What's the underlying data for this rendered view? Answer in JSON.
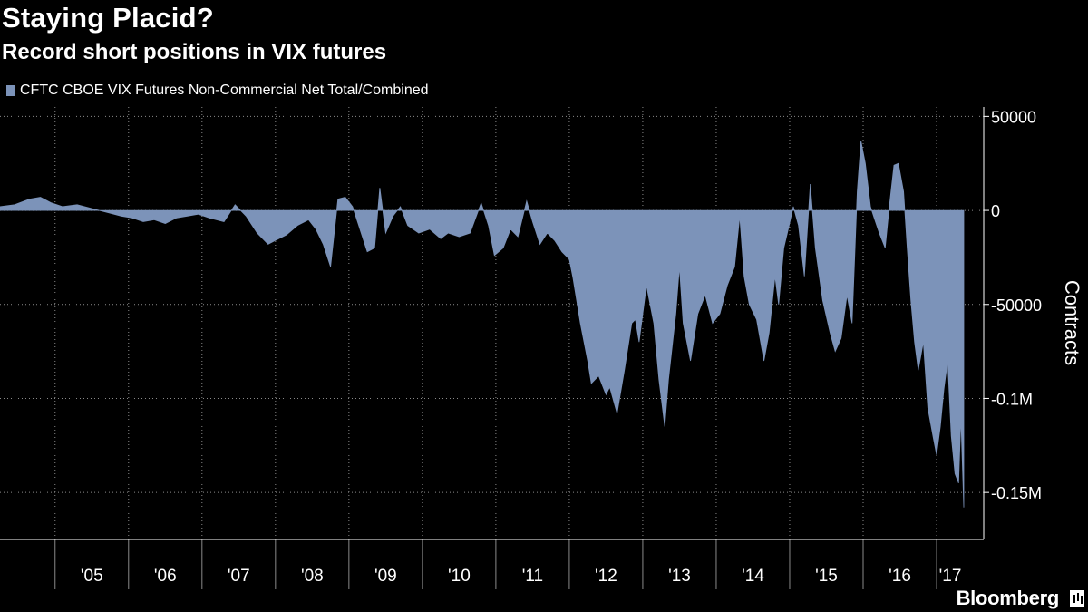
{
  "chart_data": {
    "type": "area",
    "title": "Staying Placid?",
    "subtitle": "Record short positions in VIX futures",
    "legend": "CFTC CBOE VIX Futures Non-Commercial Net Total/Combined",
    "ylabel": "Contracts",
    "ylim": [
      -175000,
      55000
    ],
    "xlim": [
      2004.25,
      2017.37
    ],
    "yticks": [
      {
        "value": 50000,
        "label": "50000"
      },
      {
        "value": 0,
        "label": "0"
      },
      {
        "value": -50000,
        "label": "-50000"
      },
      {
        "value": -100000,
        "label": "-0.1M"
      },
      {
        "value": -150000,
        "label": "-0.15M"
      }
    ],
    "year_labels": [
      "'05",
      "'06",
      "'07",
      "'08",
      "'09",
      "'10",
      "'11",
      "'12",
      "'13",
      "'14",
      "'15",
      "'16",
      "'17"
    ],
    "year_starts": [
      2005,
      2006,
      2007,
      2008,
      2009,
      2010,
      2011,
      2012,
      2013,
      2014,
      2015,
      2016,
      2017
    ],
    "series": [
      {
        "name": "CFTC CBOE VIX Futures Non-Commercial Net Total/Combined",
        "color": "#7c93b9",
        "points": [
          [
            2004.25,
            2000
          ],
          [
            2004.45,
            3000
          ],
          [
            2004.65,
            6000
          ],
          [
            2004.8,
            7000
          ],
          [
            2004.95,
            4000
          ],
          [
            2005.1,
            2000
          ],
          [
            2005.3,
            3000
          ],
          [
            2005.5,
            1000
          ],
          [
            2005.7,
            -1000
          ],
          [
            2005.9,
            -3000
          ],
          [
            2006.05,
            -4000
          ],
          [
            2006.2,
            -6000
          ],
          [
            2006.35,
            -5000
          ],
          [
            2006.5,
            -7000
          ],
          [
            2006.65,
            -4000
          ],
          [
            2006.8,
            -3000
          ],
          [
            2006.95,
            -2000
          ],
          [
            2007.1,
            -4000
          ],
          [
            2007.3,
            -6000
          ],
          [
            2007.45,
            3000
          ],
          [
            2007.6,
            -3000
          ],
          [
            2007.75,
            -12000
          ],
          [
            2007.9,
            -18000
          ],
          [
            2008.0,
            -16000
          ],
          [
            2008.15,
            -13000
          ],
          [
            2008.3,
            -8000
          ],
          [
            2008.45,
            -5000
          ],
          [
            2008.55,
            -10000
          ],
          [
            2008.65,
            -18000
          ],
          [
            2008.75,
            -30000
          ],
          [
            2008.85,
            6000
          ],
          [
            2008.95,
            7000
          ],
          [
            2009.05,
            2000
          ],
          [
            2009.15,
            -10000
          ],
          [
            2009.25,
            -22000
          ],
          [
            2009.35,
            -20000
          ],
          [
            2009.42,
            12000
          ],
          [
            2009.5,
            -12000
          ],
          [
            2009.6,
            -3000
          ],
          [
            2009.7,
            2000
          ],
          [
            2009.8,
            -8000
          ],
          [
            2009.95,
            -12000
          ],
          [
            2010.1,
            -10000
          ],
          [
            2010.25,
            -15000
          ],
          [
            2010.35,
            -12000
          ],
          [
            2010.5,
            -14000
          ],
          [
            2010.65,
            -12000
          ],
          [
            2010.8,
            4000
          ],
          [
            2010.9,
            -8000
          ],
          [
            2010.98,
            -24000
          ],
          [
            2011.1,
            -20000
          ],
          [
            2011.2,
            -10000
          ],
          [
            2011.3,
            -14000
          ],
          [
            2011.42,
            5000
          ],
          [
            2011.5,
            -6000
          ],
          [
            2011.6,
            -18000
          ],
          [
            2011.7,
            -12000
          ],
          [
            2011.8,
            -16000
          ],
          [
            2011.9,
            -22000
          ],
          [
            2012.0,
            -26000
          ],
          [
            2012.05,
            -36000
          ],
          [
            2012.15,
            -60000
          ],
          [
            2012.25,
            -80000
          ],
          [
            2012.3,
            -92000
          ],
          [
            2012.4,
            -88000
          ],
          [
            2012.5,
            -98000
          ],
          [
            2012.55,
            -94000
          ],
          [
            2012.65,
            -108000
          ],
          [
            2012.75,
            -85000
          ],
          [
            2012.85,
            -60000
          ],
          [
            2012.9,
            -58000
          ],
          [
            2012.95,
            -70000
          ],
          [
            2013.05,
            -40000
          ],
          [
            2013.15,
            -60000
          ],
          [
            2013.22,
            -90000
          ],
          [
            2013.3,
            -115000
          ],
          [
            2013.35,
            -90000
          ],
          [
            2013.45,
            -55000
          ],
          [
            2013.5,
            -30000
          ],
          [
            2013.55,
            -60000
          ],
          [
            2013.65,
            -80000
          ],
          [
            2013.75,
            -55000
          ],
          [
            2013.85,
            -45000
          ],
          [
            2013.95,
            -60000
          ],
          [
            2014.05,
            -55000
          ],
          [
            2014.15,
            -40000
          ],
          [
            2014.25,
            -30000
          ],
          [
            2014.32,
            -3000
          ],
          [
            2014.38,
            -35000
          ],
          [
            2014.45,
            -50000
          ],
          [
            2014.55,
            -58000
          ],
          [
            2014.65,
            -80000
          ],
          [
            2014.72,
            -65000
          ],
          [
            2014.8,
            -35000
          ],
          [
            2014.85,
            -50000
          ],
          [
            2014.92,
            -20000
          ],
          [
            2014.98,
            -10000
          ],
          [
            2015.05,
            2000
          ],
          [
            2015.12,
            -8000
          ],
          [
            2015.2,
            -35000
          ],
          [
            2015.28,
            14000
          ],
          [
            2015.35,
            -20000
          ],
          [
            2015.45,
            -48000
          ],
          [
            2015.55,
            -65000
          ],
          [
            2015.62,
            -75000
          ],
          [
            2015.7,
            -68000
          ],
          [
            2015.78,
            -45000
          ],
          [
            2015.85,
            -60000
          ],
          [
            2015.92,
            10000
          ],
          [
            2015.97,
            37000
          ],
          [
            2016.03,
            25000
          ],
          [
            2016.1,
            2000
          ],
          [
            2016.15,
            -4000
          ],
          [
            2016.22,
            -12000
          ],
          [
            2016.3,
            -20000
          ],
          [
            2016.35,
            0
          ],
          [
            2016.42,
            24000
          ],
          [
            2016.48,
            25000
          ],
          [
            2016.55,
            10000
          ],
          [
            2016.6,
            -20000
          ],
          [
            2016.65,
            -48000
          ],
          [
            2016.7,
            -70000
          ],
          [
            2016.75,
            -85000
          ],
          [
            2016.82,
            -70000
          ],
          [
            2016.88,
            -105000
          ],
          [
            2016.95,
            -120000
          ],
          [
            2017.0,
            -130000
          ],
          [
            2017.05,
            -115000
          ],
          [
            2017.1,
            -95000
          ],
          [
            2017.15,
            -80000
          ],
          [
            2017.2,
            -120000
          ],
          [
            2017.25,
            -140000
          ],
          [
            2017.3,
            -145000
          ],
          [
            2017.33,
            -110000
          ],
          [
            2017.37,
            -158000
          ]
        ]
      }
    ]
  },
  "brand": "Bloomberg"
}
